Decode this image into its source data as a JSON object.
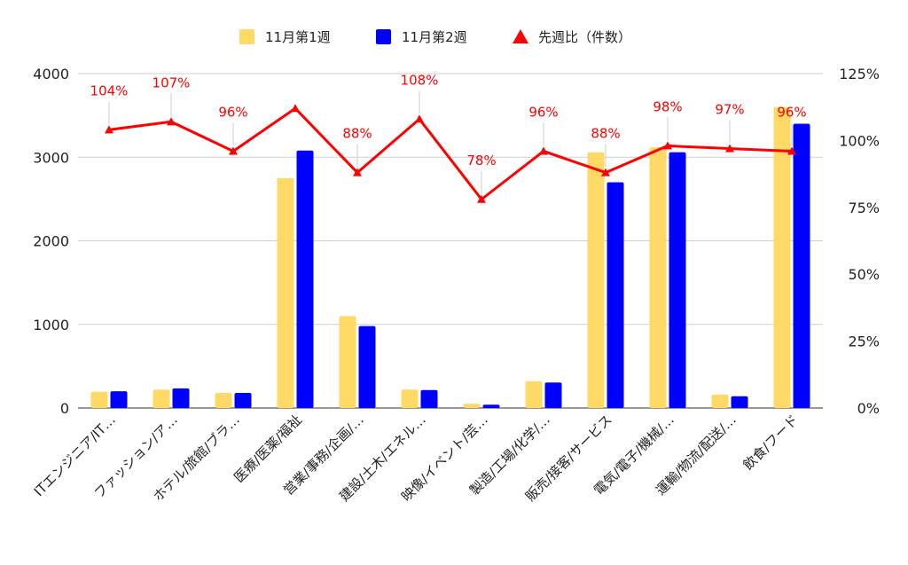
{
  "chart_data": {
    "type": "bar",
    "categories": [
      "ITエンジニア/IT…",
      "ファッション/ア…",
      "ホテル/旅館/ブラ…",
      "医療/医薬/福祉",
      "営業/事務/企画/…",
      "建設/土木/エネル…",
      "映像/イベント/芸…",
      "製造/工場/化学/…",
      "販売/接客/サービス",
      "電気/電子/機械/…",
      "運輸/物流/配送/…",
      "飲食/フード"
    ],
    "series": [
      {
        "name": "11月第1週",
        "kind": "bar",
        "axis": "left",
        "color": "#ffd966",
        "values": [
          195,
          220,
          180,
          2750,
          1100,
          220,
          50,
          320,
          3060,
          3120,
          160,
          3600
        ]
      },
      {
        "name": "11月第2週",
        "kind": "bar",
        "axis": "left",
        "color": "#0000ff",
        "values": [
          200,
          235,
          180,
          3080,
          980,
          215,
          40,
          305,
          2700,
          3060,
          140,
          3400
        ]
      },
      {
        "name": "先週比（件数）",
        "kind": "line",
        "axis": "right",
        "color": "#ff0000",
        "marker": "triangle",
        "values": [
          104,
          107,
          96,
          112,
          88,
          108,
          78,
          96,
          88,
          98,
          97,
          96
        ],
        "labels": [
          "104%",
          "107%",
          "96%",
          "",
          "88%",
          "108%",
          "78%",
          "96%",
          "88%",
          "98%",
          "97%",
          "96%"
        ]
      }
    ],
    "left_axis": {
      "min": 0,
      "max": 4000,
      "ticks": [
        "0",
        "1000",
        "2000",
        "3000",
        "4000"
      ]
    },
    "right_axis": {
      "min": 0,
      "max": 125,
      "ticks": [
        "0%",
        "25%",
        "50%",
        "75%",
        "100%",
        "125%"
      ]
    },
    "grid": true,
    "legend": "top-center"
  }
}
